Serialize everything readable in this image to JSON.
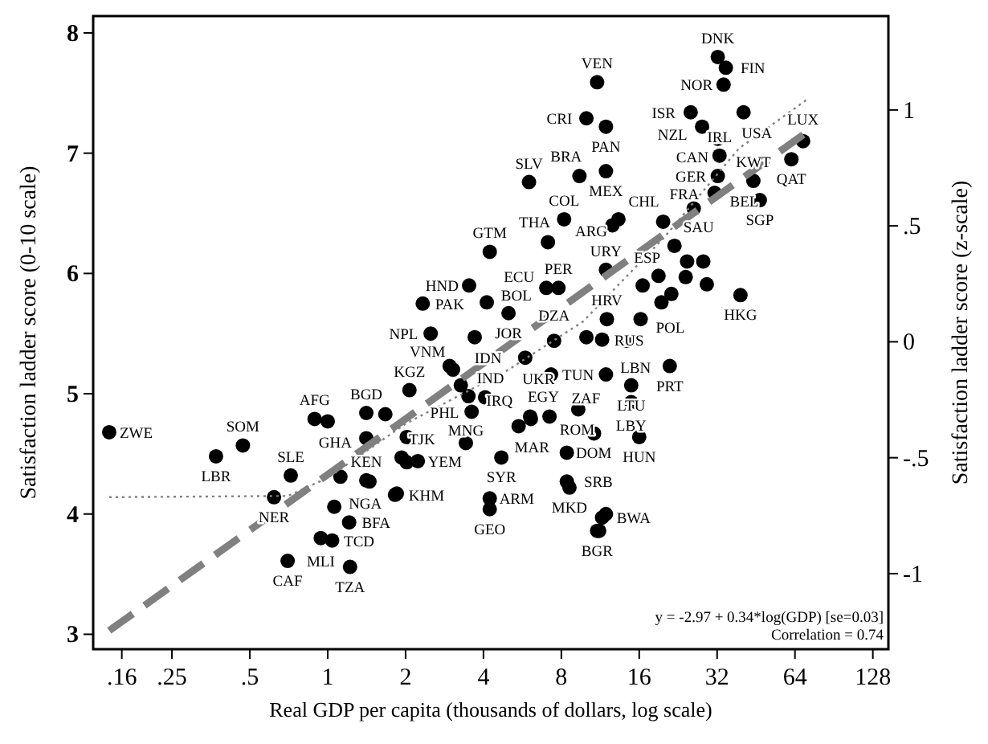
{
  "chart_data": {
    "type": "scatter",
    "xlabel": "Real GDP per capita (thousands of dollars, log scale)",
    "ylabel": "Satisfaction ladder score (0-10 scale)",
    "y2label": "Satisfaction ladder score (z-scale)",
    "log": "x",
    "marker": "circle",
    "grid": false,
    "xlim": [
      0.124,
      147
    ],
    "ylim": [
      2.876,
      8.14
    ],
    "y2lim": [
      -1.326,
      1.405
    ],
    "xticks": [
      {
        "value": 0.16,
        "label": ".16"
      },
      {
        "value": 0.25,
        "label": ".25"
      },
      {
        "value": 0.5,
        "label": ".5"
      },
      1,
      2,
      4,
      8,
      16,
      32,
      64,
      128
    ],
    "yticks": [
      3,
      4,
      5,
      6,
      7,
      8
    ],
    "y2ticks": [
      -1,
      {
        "value": -0.5,
        "label": "-.5"
      },
      0,
      {
        "value": 0.5,
        "label": ".5"
      },
      1
    ],
    "series": [
      {
        "color": "#000000",
        "x": [
          0.143,
          0.37,
          0.47,
          0.62,
          0.72,
          0.89,
          0.7,
          1.22,
          1.21,
          1.04,
          0.94,
          1.06,
          1.41,
          1.82,
          2.02,
          2.23,
          1.41,
          1.41,
          3.42,
          3.6,
          2.07,
          4.23,
          3.52,
          2.33,
          4.12,
          5.0,
          2.5,
          3.7,
          3.05,
          3.27,
          3.5,
          5.47,
          6.06,
          4.69,
          4.23,
          4.23,
          5.8,
          7.5,
          7.3,
          9.3,
          11.9,
          8.4,
          8.4,
          8.6,
          11.5,
          11.0,
          7.1,
          8.2,
          11.9,
          7.0,
          7.8,
          11.0,
          10.0,
          11.9,
          6.0,
          9.4,
          11.9,
          13.3,
          12.6,
          19.8,
          39.4,
          16.2,
          12.0,
          21,
          68.8,
          62,
          44.2,
          46.8,
          32.2,
          34.6,
          33.9,
          25.3,
          40.5,
          28,
          32.2,
          32.7,
          32.2,
          31.3,
          26,
          21.9,
          14.9,
          14.9,
          16.0,
          10.7,
          11.5,
          1.0,
          1.67,
          2.02,
          1.93,
          1.45,
          1.85,
          1.12,
          2.96,
          10,
          14.3,
          6.1,
          7.2,
          24.5,
          28.3,
          24.2,
          29.2,
          19.0,
          16.5,
          21.3,
          19.5,
          11.9,
          11.2,
          4.06
        ],
        "values": [
          4.68,
          4.48,
          4.57,
          4.14,
          4.32,
          4.79,
          3.61,
          3.56,
          3.93,
          3.78,
          3.8,
          4.06,
          4.28,
          4.16,
          4.43,
          4.44,
          4.63,
          4.84,
          4.59,
          4.85,
          5.03,
          6.18,
          5.9,
          5.75,
          5.76,
          5.67,
          5.5,
          5.47,
          5.2,
          5.07,
          4.98,
          4.73,
          4.81,
          4.47,
          4.13,
          4.04,
          5.3,
          5.44,
          5.16,
          4.87,
          5.16,
          4.51,
          4.27,
          4.22,
          3.97,
          3.86,
          6.26,
          6.45,
          6.03,
          5.88,
          5.88,
          7.59,
          7.29,
          7.22,
          6.76,
          6.81,
          6.85,
          6.45,
          6.4,
          6.43,
          5.82,
          5.62,
          5.62,
          5.23,
          7.1,
          6.95,
          6.77,
          6.61,
          7.8,
          7.71,
          7.57,
          7.34,
          7.34,
          7.22,
          7.12,
          6.98,
          6.81,
          6.67,
          6.54,
          6.23,
          5.07,
          4.93,
          4.64,
          4.67,
          5.45,
          4.77,
          4.83,
          4.64,
          4.47,
          4.27,
          4.17,
          4.31,
          5.23,
          5.47,
          5.44,
          4.79,
          4.81,
          6.1,
          6.1,
          5.97,
          5.91,
          5.98,
          5.9,
          5.83,
          5.76,
          4.0,
          3.86,
          4.97
        ]
      },
      {
        "type": "line",
        "color": "#808080",
        "line_style": "dashed",
        "marker": "none",
        "x": [
          0.143,
          70.6
        ],
        "values": [
          3.03,
          7.17
        ]
      },
      {
        "type": "line",
        "color": "#808080",
        "line_style": "dotted",
        "marker": "none",
        "x": [
          0.143,
          0.7,
          1,
          2,
          5,
          9.7,
          20,
          38.9,
          70.6
        ],
        "values": [
          4.14,
          4.15,
          4.3,
          4.75,
          5.2,
          5.6,
          6.3,
          7.04,
          7.44
        ]
      }
    ],
    "annotations": [
      "y = -2.97 + 0.34*log(GDP) [se=0.03]",
      "Correlation = 0.74",
      {
        "text": "ZWE",
        "x": 0.143,
        "y": 4.68
      },
      {
        "text": "LBR",
        "x": 0.37,
        "y": 4.48
      },
      {
        "text": "SOM",
        "x": 0.47,
        "y": 4.57
      },
      {
        "text": "NER",
        "x": 0.62,
        "y": 4.14
      },
      {
        "text": "SLE",
        "x": 0.72,
        "y": 4.32
      },
      {
        "text": "AFG",
        "x": 0.89,
        "y": 4.79
      },
      {
        "text": "CAF",
        "x": 0.7,
        "y": 3.61
      },
      {
        "text": "TZA",
        "x": 1.22,
        "y": 3.56
      },
      {
        "text": "BFA",
        "x": 1.21,
        "y": 3.93
      },
      {
        "text": "TCD",
        "x": 1.04,
        "y": 3.78
      },
      {
        "text": "MLI",
        "x": 0.94,
        "y": 3.8
      },
      {
        "text": "NGA",
        "x": 1.06,
        "y": 4.06
      },
      {
        "text": "KEN",
        "x": 1.41,
        "y": 4.28
      },
      {
        "text": "KHM",
        "x": 1.82,
        "y": 4.16
      },
      {
        "text": "TJK",
        "x": 2.02,
        "y": 4.43
      },
      {
        "text": "YEM",
        "x": 2.23,
        "y": 4.44
      },
      {
        "text": "GHA",
        "x": 1.41,
        "y": 4.63
      },
      {
        "text": "BGD",
        "x": 1.41,
        "y": 4.84
      },
      {
        "text": "MNG",
        "x": 3.42,
        "y": 4.59
      },
      {
        "text": "PHL",
        "x": 3.6,
        "y": 4.85
      },
      {
        "text": "KGZ",
        "x": 2.07,
        "y": 5.03
      },
      {
        "text": "GTM",
        "x": 4.23,
        "y": 6.18
      },
      {
        "text": "HND",
        "x": 3.52,
        "y": 5.9
      },
      {
        "text": "PAK",
        "x": 2.33,
        "y": 5.75
      },
      {
        "text": "BOL",
        "x": 4.12,
        "y": 5.76
      },
      {
        "text": "JOR",
        "x": 5.0,
        "y": 5.67
      },
      {
        "text": "NPL",
        "x": 2.5,
        "y": 5.5
      },
      {
        "text": "IDN",
        "x": 3.7,
        "y": 5.47
      },
      {
        "text": "VNM",
        "x": 3.05,
        "y": 5.2
      },
      {
        "text": "IND",
        "x": 3.27,
        "y": 5.07
      },
      {
        "text": "IRQ",
        "x": 3.5,
        "y": 4.98
      },
      {
        "text": "MAR",
        "x": 5.47,
        "y": 4.73
      },
      {
        "text": "EGY",
        "x": 6.06,
        "y": 4.81
      },
      {
        "text": "SYR",
        "x": 4.69,
        "y": 4.47
      },
      {
        "text": "ARM",
        "x": 4.23,
        "y": 4.13
      },
      {
        "text": "GEO",
        "x": 4.23,
        "y": 4.04
      },
      {
        "text": "UKR",
        "x": 5.8,
        "y": 5.3
      },
      {
        "text": "DZA",
        "x": 7.5,
        "y": 5.44
      },
      {
        "text": "TUN",
        "x": 7.3,
        "y": 5.16
      },
      {
        "text": "ZAF",
        "x": 9.3,
        "y": 4.87
      },
      {
        "text": "LBN",
        "x": 11.9,
        "y": 5.16
      },
      {
        "text": "DOM",
        "x": 8.4,
        "y": 4.51
      },
      {
        "text": "SRB",
        "x": 8.4,
        "y": 4.27
      },
      {
        "text": "MKD",
        "x": 8.6,
        "y": 4.22
      },
      {
        "text": "BWA",
        "x": 11.5,
        "y": 3.97
      },
      {
        "text": "BGR",
        "x": 11.0,
        "y": 3.86
      },
      {
        "text": "THA",
        "x": 7.1,
        "y": 6.26
      },
      {
        "text": "COL",
        "x": 8.2,
        "y": 6.45
      },
      {
        "text": "URY",
        "x": 11.9,
        "y": 6.03
      },
      {
        "text": "ECU",
        "x": 7.0,
        "y": 5.88
      },
      {
        "text": "PER",
        "x": 7.8,
        "y": 5.88
      },
      {
        "text": "VEN",
        "x": 11.0,
        "y": 7.59
      },
      {
        "text": "CRI",
        "x": 10.0,
        "y": 7.29
      },
      {
        "text": "PAN",
        "x": 11.9,
        "y": 7.22
      },
      {
        "text": "SLV",
        "x": 6.0,
        "y": 6.76
      },
      {
        "text": "BRA",
        "x": 9.4,
        "y": 6.81
      },
      {
        "text": "MEX",
        "x": 11.9,
        "y": 6.85
      },
      {
        "text": "CHL",
        "x": 13.3,
        "y": 6.45
      },
      {
        "text": "ARG",
        "x": 12.6,
        "y": 6.4
      },
      {
        "text": "SAU",
        "x": 19.8,
        "y": 6.43
      },
      {
        "text": "HKG",
        "x": 39.4,
        "y": 5.82
      },
      {
        "text": "POL",
        "x": 16.2,
        "y": 5.62
      },
      {
        "text": "HRV",
        "x": 12.0,
        "y": 5.62
      },
      {
        "text": "PRT",
        "x": 21,
        "y": 5.23
      },
      {
        "text": "LUX",
        "x": 68.8,
        "y": 7.1
      },
      {
        "text": "QAT",
        "x": 62,
        "y": 6.95
      },
      {
        "text": "KWT",
        "x": 44.2,
        "y": 6.77
      },
      {
        "text": "SGP",
        "x": 46.8,
        "y": 6.61
      },
      {
        "text": "DNK",
        "x": 32.2,
        "y": 7.8
      },
      {
        "text": "FIN",
        "x": 34.6,
        "y": 7.71
      },
      {
        "text": "NOR",
        "x": 33.9,
        "y": 7.57
      },
      {
        "text": "ISR",
        "x": 25.3,
        "y": 7.34
      },
      {
        "text": "USA",
        "x": 40.5,
        "y": 7.34
      },
      {
        "text": "NZL",
        "x": 28,
        "y": 7.22
      },
      {
        "text": "CAN",
        "x": 32.2,
        "y": 7.12
      },
      {
        "text": "IRL",
        "x": 32.7,
        "y": 6.98
      },
      {
        "text": "GER",
        "x": 32.2,
        "y": 6.81
      },
      {
        "text": "BEL",
        "x": 31.3,
        "y": 6.67
      },
      {
        "text": "FRA",
        "x": 26,
        "y": 6.54
      },
      {
        "text": "ESP",
        "x": 21.9,
        "y": 6.23
      },
      {
        "text": "LTU",
        "x": 14.9,
        "y": 5.07
      },
      {
        "text": "LBY",
        "x": 14.9,
        "y": 4.93
      },
      {
        "text": "HUN",
        "x": 16.0,
        "y": 4.64
      },
      {
        "text": "ROM",
        "x": 10.7,
        "y": 4.67
      },
      {
        "text": "RUS",
        "x": 11.5,
        "y": 5.45
      }
    ]
  }
}
